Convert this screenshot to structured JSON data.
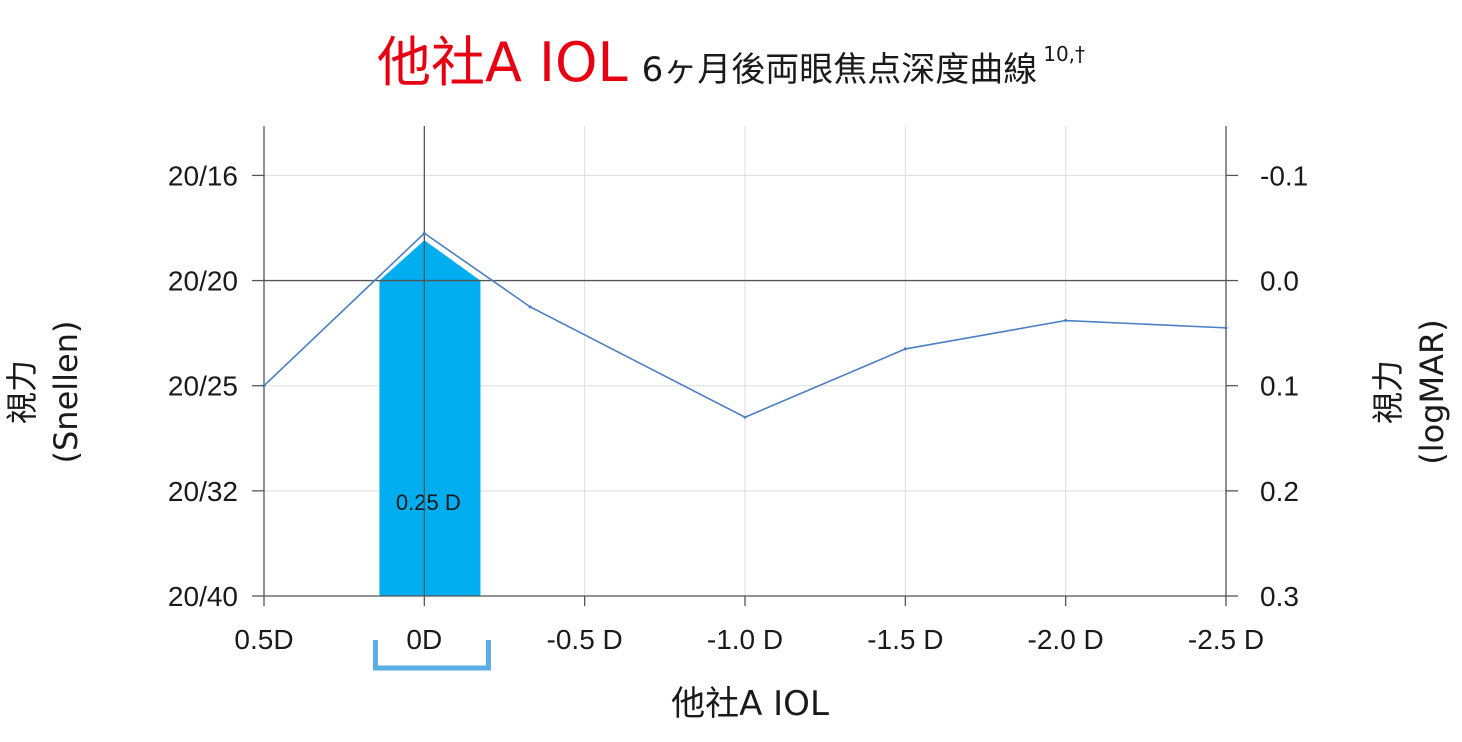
{
  "title": {
    "brand": "他社A IOL",
    "rest": "6ヶ月後両眼焦点深度曲線",
    "superscript": "10,†"
  },
  "colors": {
    "brand": "#e60012",
    "curve": "#4a7fc1",
    "band": "#00aeef",
    "bracket": "#5aaee6",
    "axis": "#555555",
    "grid": "#dddddd"
  },
  "chart_data": {
    "type": "line",
    "x_tick_labels": [
      "0.5D",
      "0D",
      "-0.5 D",
      "-1.0 D",
      "-1.5 D",
      "-2.0 D",
      "-2.5 D"
    ],
    "x_ticks": [
      0.5,
      0,
      -0.5,
      -1.0,
      -1.5,
      -2.0,
      -2.5
    ],
    "xlim": [
      0.5,
      -2.5
    ],
    "xlabel": "他社A IOL",
    "ylabel_left": "視力\n(Snellen)",
    "ylabel_right": "視力\n(logMAR)",
    "y_ticks_logmar": [
      -0.1,
      0.0,
      0.1,
      0.2,
      0.3
    ],
    "y_tick_labels_left": [
      "20/16",
      "20/20",
      "20/25",
      "20/32",
      "20/40"
    ],
    "y_tick_labels_right": [
      "-0.1",
      "0.0",
      "0.1",
      "0.2",
      "0.3"
    ],
    "ylim_logmar": [
      -0.147,
      0.3
    ],
    "y_inverted": true,
    "grid": true,
    "series": [
      {
        "x": [
          0.5,
          0,
          -0.33,
          -1.0,
          -1.5,
          -2.0,
          -2.5
        ],
        "y": [
          0.1,
          -0.045,
          0.025,
          0.13,
          0.065,
          0.038,
          0.045
        ]
      }
    ],
    "band": {
      "x_range": [
        0.14,
        -0.175
      ],
      "label": "0.25 D"
    }
  }
}
